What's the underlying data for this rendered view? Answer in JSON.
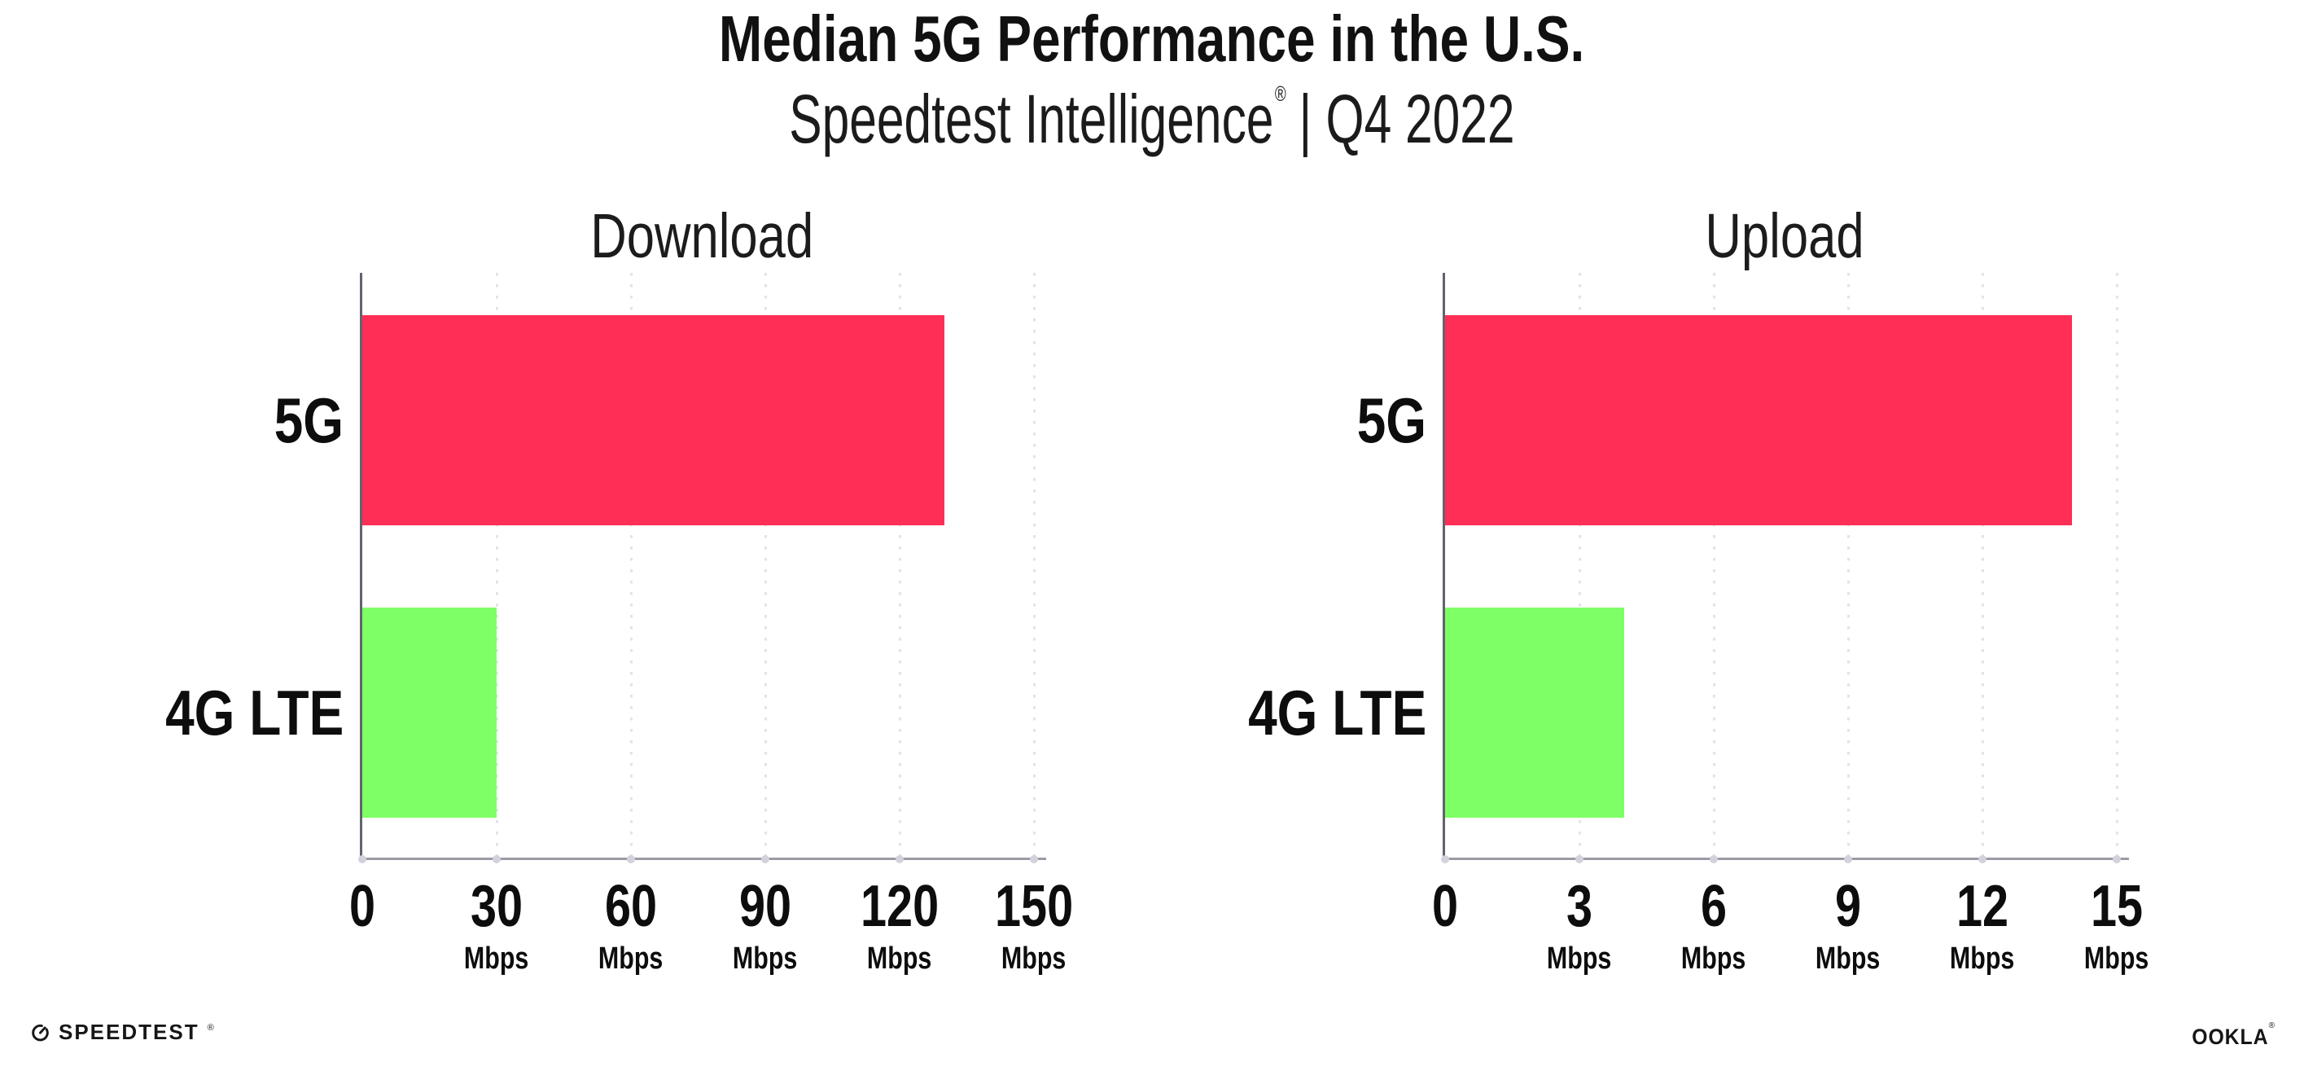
{
  "page": {
    "title": "Median 5G Performance in the U.S.",
    "subtitle": {
      "brand": "Speedtest Intelligence",
      "registered": "®",
      "divider": "|",
      "period": "Q4 2022"
    }
  },
  "footer": {
    "speedtest": {
      "label": "SPEEDTEST",
      "registered": "®",
      "icon": "speedtest-gauge-icon"
    },
    "ookla": {
      "label": "OOKLA",
      "registered": "®"
    }
  },
  "colors": {
    "bar_5g": "#FF2E56",
    "bar_4g_lte": "#7FFF66",
    "gridline": "#E2E2EC",
    "x_axis_line": "#9B9BA5",
    "y_axis_line": "#63636D",
    "axis_tick_dot": "#D2D2DC",
    "text": "#111111"
  },
  "chart_data": [
    {
      "type": "bar",
      "orientation": "horizontal",
      "title": "Download",
      "categories": [
        "5G",
        "4G LTE"
      ],
      "values": [
        130,
        30
      ],
      "unit": "Mbps",
      "xlim": [
        0,
        150
      ],
      "xticks": [
        0,
        30,
        60,
        90,
        120,
        150
      ],
      "tick_unit_label": "Mbps",
      "bar_colors": [
        "#FF2E56",
        "#7FFF66"
      ],
      "grid": "vertical-dotted",
      "legend": "none"
    },
    {
      "type": "bar",
      "orientation": "horizontal",
      "title": "Upload",
      "categories": [
        "5G",
        "4G LTE"
      ],
      "values": [
        14,
        4
      ],
      "unit": "Mbps",
      "xlim": [
        0,
        15
      ],
      "xticks": [
        0,
        3,
        6,
        9,
        12,
        15
      ],
      "tick_unit_label": "Mbps",
      "bar_colors": [
        "#FF2E56",
        "#7FFF66"
      ],
      "grid": "vertical-dotted",
      "legend": "none"
    }
  ]
}
